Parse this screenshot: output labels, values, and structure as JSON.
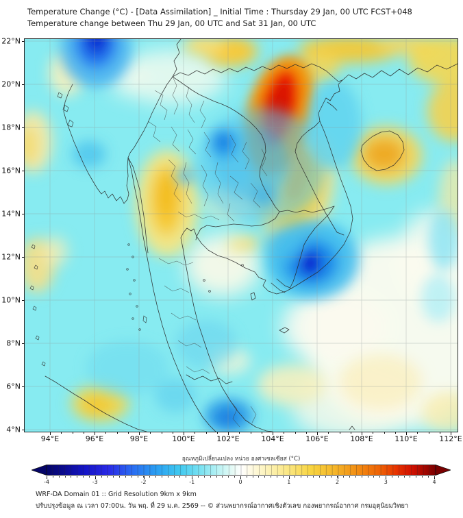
{
  "header": {
    "title_line1": "Temperature Change (°C) - [Data Assimilation] _ Initial Time : Thursday 29 Jan, 00 UTC FCST+048",
    "title_line2": "Temperature change between Thu 29 Jan, 00 UTC and Sat 31 Jan, 00 UTC"
  },
  "map": {
    "x_tick_labels": [
      "94°E",
      "96°E",
      "98°E",
      "100°E",
      "102°E",
      "104°E",
      "106°E",
      "108°E",
      "110°E",
      "112°E"
    ],
    "y_tick_labels": [
      "22°N",
      "20°N",
      "18°N",
      "16°N",
      "14°N",
      "12°N",
      "10°N",
      "8°N",
      "6°N",
      "4°N"
    ]
  },
  "colorbar": {
    "label": "อุณหภูมิเปลี่ยนแปลง หน่วย องศาเซลเซียส (°C)",
    "tick_labels": [
      "-4",
      "-3",
      "-2",
      "-1",
      "0",
      "1",
      "2",
      "3",
      "4"
    ],
    "min_color": "#050568",
    "center_color": "#ffffff",
    "max_color": "#7a0000"
  },
  "footer": {
    "line1": "WRF-DA Domain 01 :: Grid Resolution 9km x 9km",
    "line2": "ปรับปรุงข้อมูล ณ เวลา 07:00น. วัน พฤ. ที่ 29 ม.ค. 2569 -- © ส่วนพยากรณ์อากาศเชิงตัวเลข กองพยากรณ์อากาศ กรมอุตุนิยมวิทยา"
  }
}
